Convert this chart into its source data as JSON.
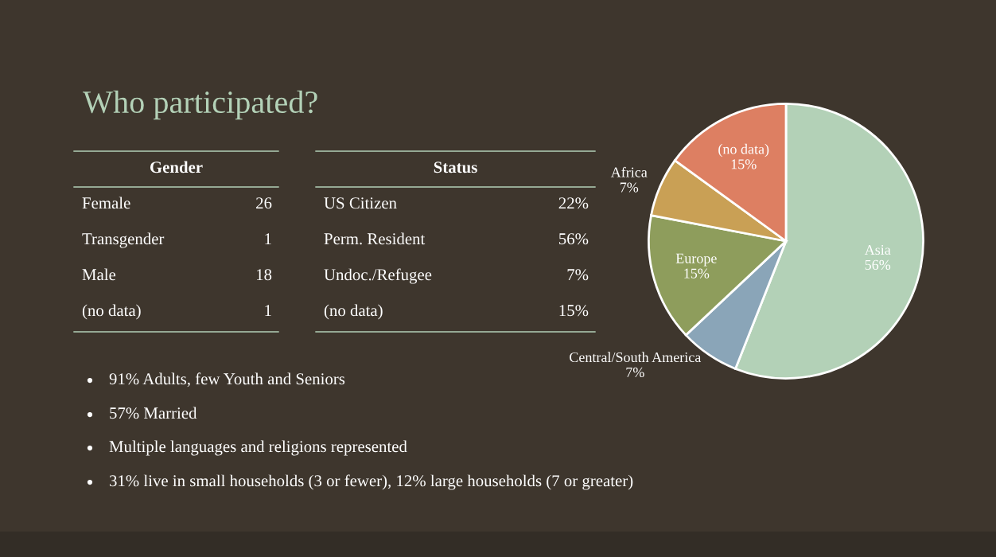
{
  "chart_data": [
    {
      "type": "other",
      "title": "Who participated?",
      "annotations": [
        "91% Adults, few Youth and Seniors",
        "57% Married",
        "Multiple languages and religions represented",
        "31% live in small households (3 or fewer), 12% large households (7 or greater)"
      ]
    },
    {
      "type": "other",
      "title": "Gender",
      "categories": [
        "Female",
        "Transgender",
        "Male",
        "(no data)"
      ],
      "values": [
        26,
        1,
        18,
        1
      ],
      "data_labels": true
    },
    {
      "type": "other",
      "title": "Status",
      "categories": [
        "US Citizen",
        "Perm. Resident",
        "Undoc./Refugee",
        "(no data)"
      ],
      "values": [
        22,
        56,
        7,
        15
      ],
      "value_labels": [
        "22%",
        "56%",
        "7%",
        "15%"
      ]
    },
    {
      "type": "pie",
      "categories": [
        "Asia",
        "Central/South America",
        "Europe",
        "Africa",
        "(no data)"
      ],
      "values": [
        56,
        7,
        15,
        7,
        15
      ],
      "value_labels": [
        "56%",
        "7%",
        "15%",
        "7%",
        "15%"
      ],
      "colors": [
        "#b3d1b7",
        "#8aa5b8",
        "#8e9d5c",
        "#c9a055",
        "#dd7f62"
      ]
    }
  ]
}
